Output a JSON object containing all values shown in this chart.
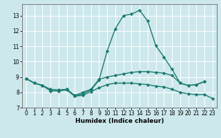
{
  "title": "",
  "xlabel": "Humidex (Indice chaleur)",
  "ylabel": "",
  "background_color": "#cde8ec",
  "line_color": "#1a7a6e",
  "x_values": [
    0,
    1,
    2,
    3,
    4,
    5,
    6,
    7,
    8,
    9,
    10,
    11,
    12,
    13,
    14,
    15,
    16,
    17,
    18,
    19,
    20,
    21,
    22,
    23
  ],
  "line1": [
    8.9,
    8.6,
    8.45,
    8.1,
    8.1,
    8.2,
    7.75,
    7.9,
    8.15,
    8.8,
    10.7,
    12.15,
    13.0,
    13.1,
    13.35,
    12.65,
    11.05,
    10.3,
    9.5,
    8.6,
    8.45,
    8.5,
    8.7,
    null
  ],
  "line2": [
    8.9,
    8.6,
    8.45,
    8.2,
    8.15,
    8.2,
    7.8,
    8.0,
    8.2,
    8.85,
    9.0,
    9.1,
    9.2,
    9.3,
    9.35,
    9.35,
    9.3,
    9.25,
    9.1,
    8.6,
    8.45,
    8.5,
    8.7,
    null
  ],
  "line3": [
    8.9,
    8.6,
    8.45,
    8.1,
    8.1,
    8.15,
    7.75,
    7.8,
    8.05,
    8.3,
    8.5,
    8.6,
    8.6,
    8.6,
    8.55,
    8.5,
    8.4,
    8.35,
    8.2,
    8.0,
    7.9,
    7.85,
    7.85,
    7.6
  ],
  "xlim": [
    -0.5,
    23.5
  ],
  "ylim": [
    7.0,
    13.75
  ],
  "yticks": [
    7,
    8,
    9,
    10,
    11,
    12,
    13
  ],
  "xticks": [
    0,
    1,
    2,
    3,
    4,
    5,
    6,
    7,
    8,
    9,
    10,
    11,
    12,
    13,
    14,
    15,
    16,
    17,
    18,
    19,
    20,
    21,
    22,
    23
  ],
  "grid_color": "#ffffff",
  "marker": "D",
  "markersize": 2.2,
  "linewidth": 1.0,
  "tick_fontsize": 5.5,
  "xlabel_fontsize": 6.5
}
